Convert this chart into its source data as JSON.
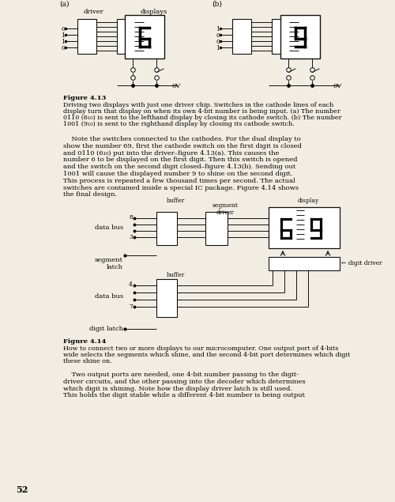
{
  "bg_color": "#f2ede3",
  "page_num": "52",
  "fig413_caption_bold": "Figure 4.13",
  "fig413_caption_line1": "Driving two displays with just one driver chip. Switches in the cathode lines of each",
  "fig413_caption_line2": "display turn that display on when its own 4-bit number is being input. (a) The number",
  "fig413_caption_line3": "0110 (6₁₀) is sent to the lefthand display by closing its cathode switch. (b) The number",
  "fig413_caption_line4": "1001 (9₁₀) is sent to the righthand display by closing its cathode switch.",
  "fig414_caption_bold": "Figure 4.14",
  "fig414_caption_line1": "How to connect two or more displays to our microcomputer. One output port of 4-bits",
  "fig414_caption_line2": "wide selects the segments which shine, and the second 4-bit port determines which digit",
  "fig414_caption_line3": "these shine on.",
  "body1_lines": [
    "    Note the switches connected to the cathodes. For the dual display to",
    "show the number 69, first the cathode switch on the first digit is closed",
    "and 0110 (6₁₀) put into the driver–figure 4.13(a). This causes the",
    "number 6 to be displayed on the first digit. Then this switch is opened",
    "and the switch on the second digit closed–figure 4.13(b). Sending out",
    "1001 will cause the displayed number 9 to shine on the second digit.",
    "This process is repeated a few thousand times per second. The actual",
    "switches are contained inside a special IC package. Figure 4.14 shows",
    "the final design."
  ],
  "body2_lines": [
    "    Two output ports are needed, one 4-bit number passing to the digit-",
    "driver circuits, and the other passing into the decoder which determines",
    "which digit is shining. Note how the display driver latch is still used.",
    "This holds the digit stable while a different 4-bit number is being output"
  ]
}
